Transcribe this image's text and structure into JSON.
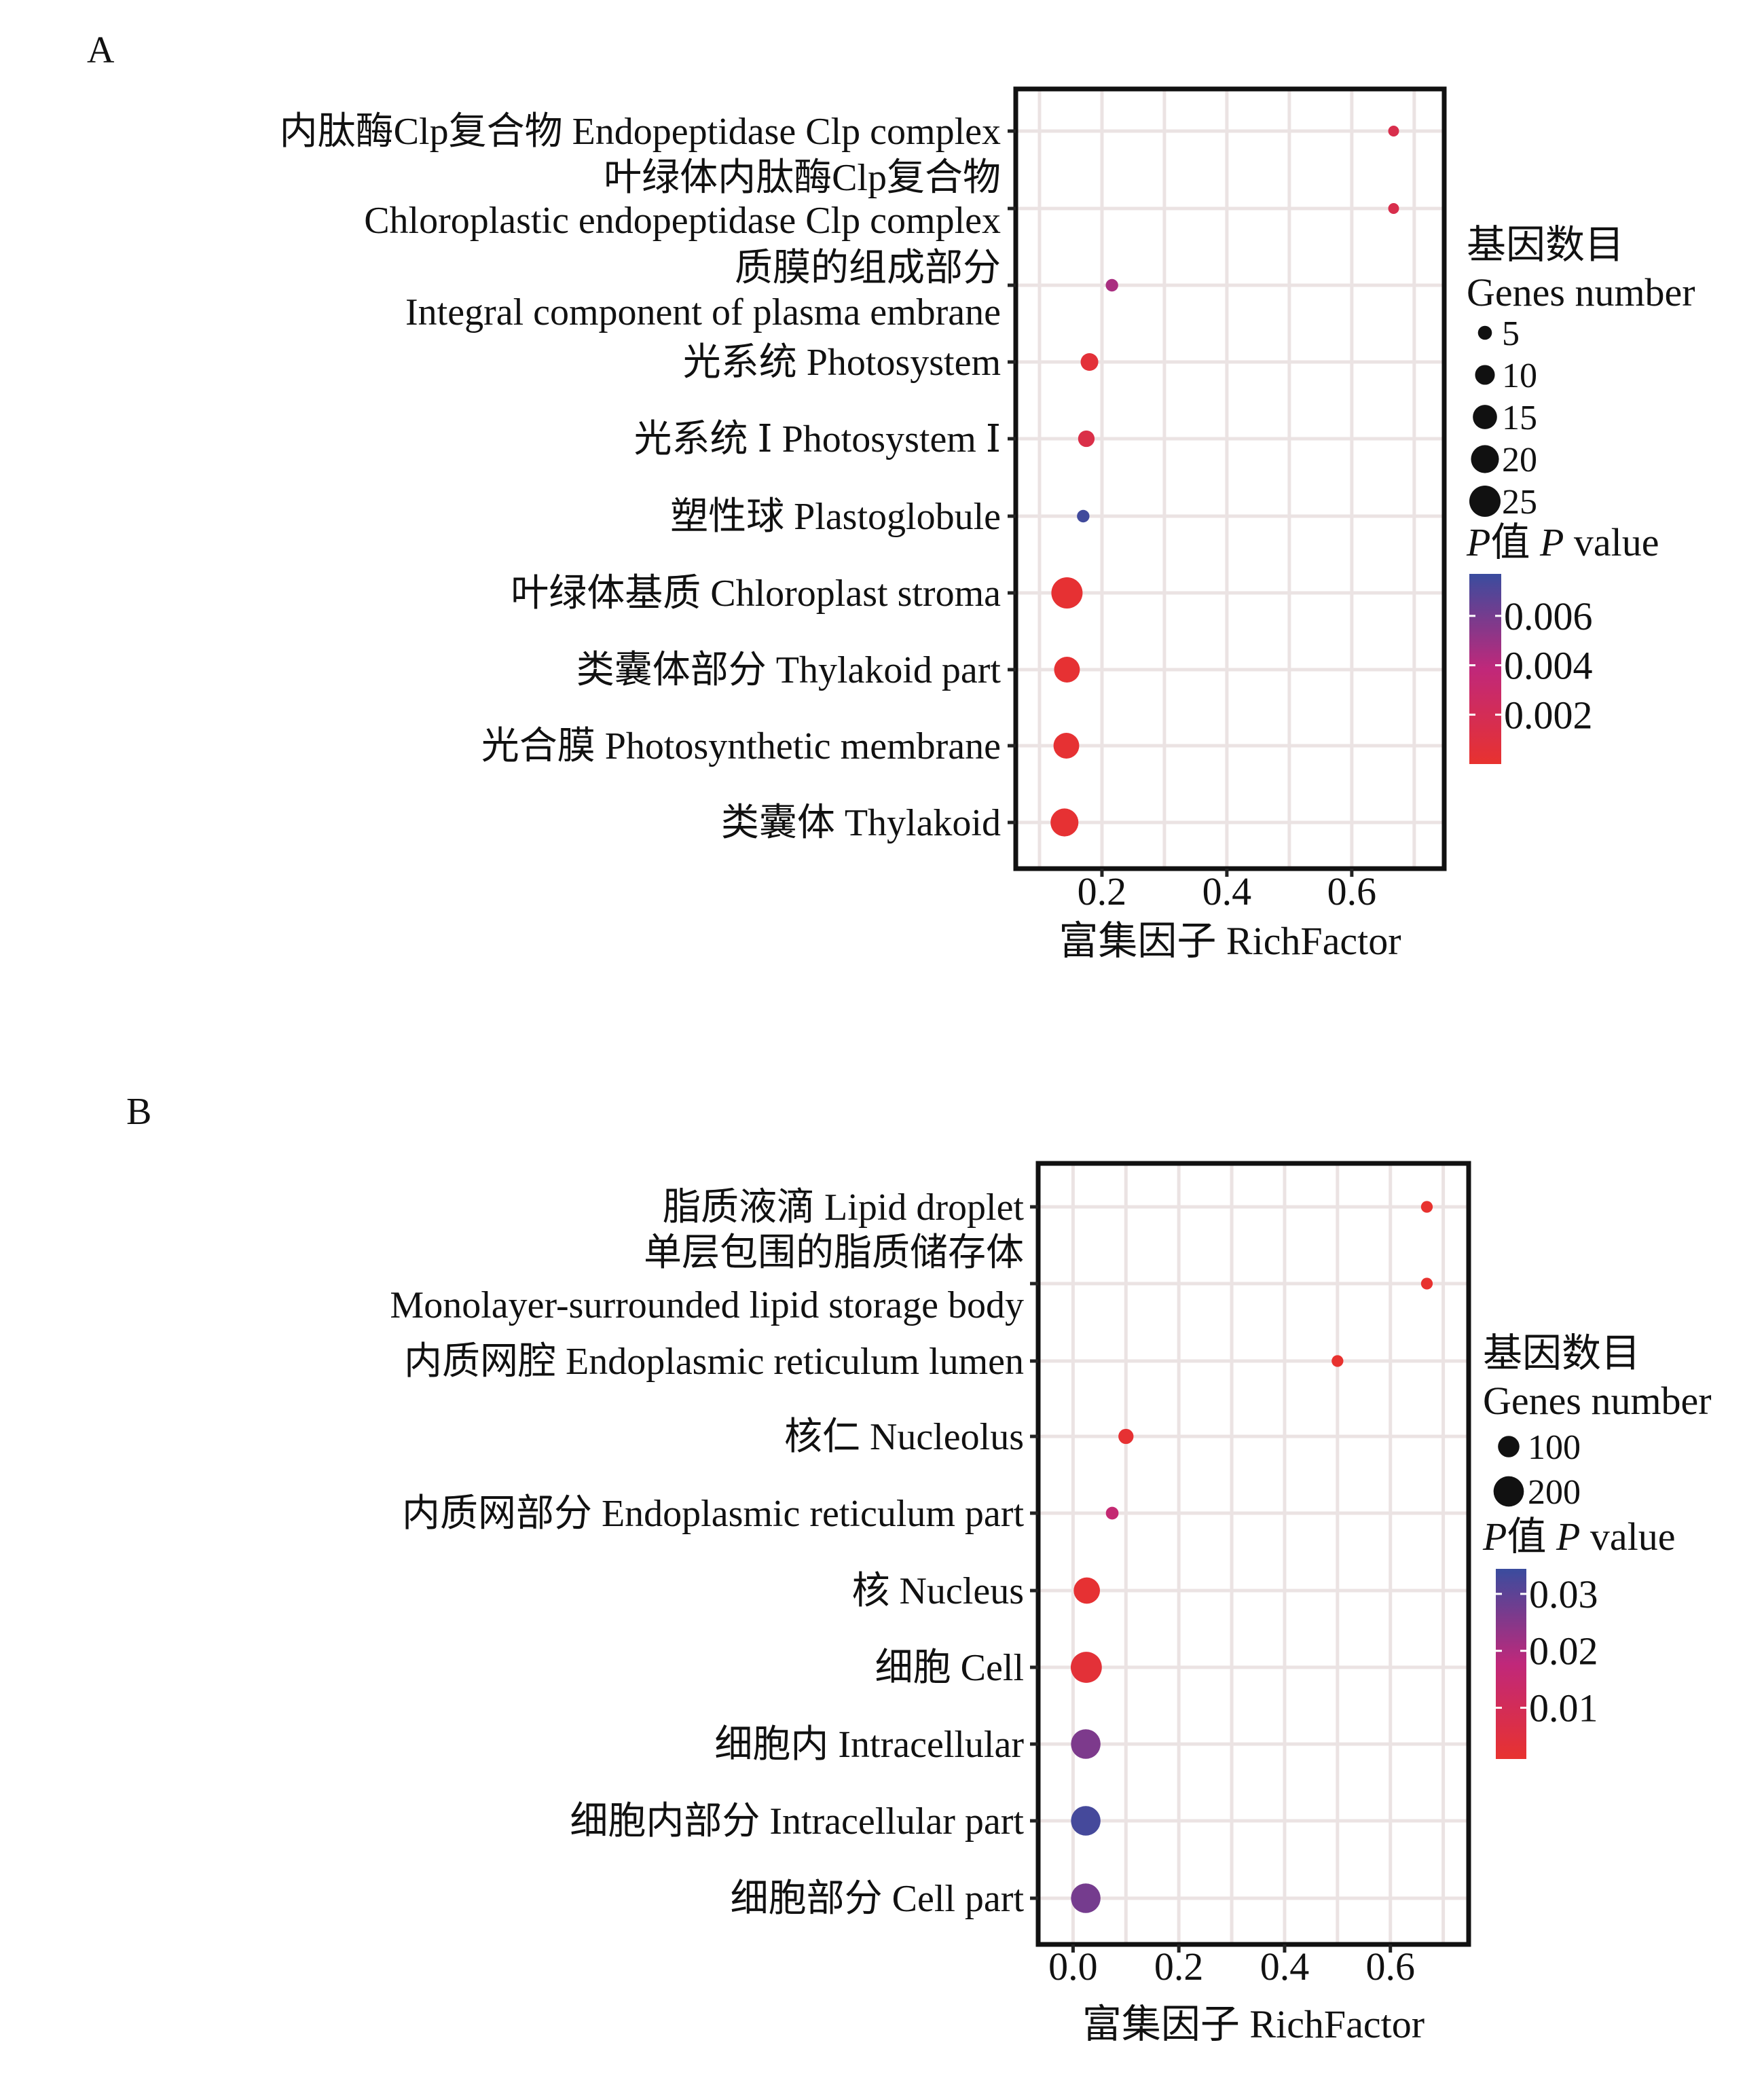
{
  "chart_data": [
    {
      "type": "scatter",
      "panel": "A",
      "xlabel": "富集因子 RichFactor",
      "ylabel": "",
      "xlim": [
        0.062,
        0.748
      ],
      "xticks": [
        0.2,
        0.4,
        0.6
      ],
      "xtick_labels": [
        "0.2",
        "0.4",
        "0.6"
      ],
      "grid": true,
      "legend_placement": "right",
      "size_legend": {
        "title_lines": [
          "基因数目",
          "Genes number"
        ],
        "values": [
          5,
          10,
          15,
          20,
          25
        ],
        "labels": [
          "5",
          "10",
          "15",
          "20",
          "25"
        ]
      },
      "color_legend": {
        "title_prefix": "P",
        "title_rest": "值 ",
        "title_p": "P",
        "title_suffix": " value",
        "range": [
          0,
          0.0077
        ],
        "ticks": [
          0.006,
          0.004,
          0.002
        ],
        "tick_labels": [
          "0.006",
          "0.004",
          "0.002"
        ],
        "low_color": "#e8322f",
        "mid_color": "#c0287a",
        "high_color": "#3a4c9e"
      },
      "categories": [
        {
          "label_lines": [
            "内肽酶Clp复合物 Endopeptidase Clp complex"
          ],
          "rich_factor": 0.667,
          "genes": 3,
          "p_value": 0.0015
        },
        {
          "label_lines": [
            "叶绿体内肽酶Clp复合物",
            "Chloroplastic endopeptidase Clp complex"
          ],
          "rich_factor": 0.667,
          "genes": 3,
          "p_value": 0.0015
        },
        {
          "label_lines": [
            "质膜的组成部分",
            "Integral component of plasma embrane"
          ],
          "rich_factor": 0.216,
          "genes": 4,
          "p_value": 0.0045
        },
        {
          "label_lines": [
            "光系统 Photosystem"
          ],
          "rich_factor": 0.18,
          "genes": 8,
          "p_value": 0.0005
        },
        {
          "label_lines": [
            "光系统 Ⅰ Photosystem Ⅰ"
          ],
          "rich_factor": 0.175,
          "genes": 7,
          "p_value": 0.0013
        },
        {
          "label_lines": [
            "塑性球 Plastoglobule"
          ],
          "rich_factor": 0.17,
          "genes": 4,
          "p_value": 0.0075
        },
        {
          "label_lines": [
            "叶绿体基质 Chloroplast stroma"
          ],
          "rich_factor": 0.144,
          "genes": 25,
          "p_value": 0.0002
        },
        {
          "label_lines": [
            "类囊体部分 Thylakoid part"
          ],
          "rich_factor": 0.144,
          "genes": 17,
          "p_value": 0.0002
        },
        {
          "label_lines": [
            "光合膜 Photosynthetic membrane"
          ],
          "rich_factor": 0.143,
          "genes": 17,
          "p_value": 0.0002
        },
        {
          "label_lines": [
            "类囊体 Thylakoid"
          ],
          "rich_factor": 0.14,
          "genes": 20,
          "p_value": 0.0002
        }
      ]
    },
    {
      "type": "scatter",
      "panel": "B",
      "xlabel": "富集因子 RichFactor",
      "ylabel": "",
      "xlim": [
        -0.066,
        0.748
      ],
      "xticks": [
        0.0,
        0.2,
        0.4,
        0.6
      ],
      "xtick_labels": [
        "0.0",
        "0.2",
        "0.4",
        "0.6"
      ],
      "grid": true,
      "legend_placement": "right",
      "size_legend": {
        "title_lines": [
          "基因数目",
          "Genes number"
        ],
        "values": [
          100,
          200
        ],
        "labels": [
          "100",
          "200"
        ]
      },
      "color_legend": {
        "title_prefix": "P",
        "title_rest": "值 ",
        "title_p": "P",
        "title_suffix": " value",
        "range": [
          0.001,
          0.0344
        ],
        "ticks": [
          0.03,
          0.02,
          0.01
        ],
        "tick_labels": [
          "0.03",
          "0.02",
          "0.01"
        ],
        "low_color": "#e8322f",
        "mid_color": "#c0287a",
        "high_color": "#3a4c9e"
      },
      "categories": [
        {
          "label_lines": [
            "脂质液滴 Lipid droplet"
          ],
          "rich_factor": 0.669,
          "genes": 30,
          "p_value": 0.001
        },
        {
          "label_lines": [
            "单层包围的脂质储存体",
            "Monolayer-surrounded lipid storage body"
          ],
          "rich_factor": 0.669,
          "genes": 30,
          "p_value": 0.001
        },
        {
          "label_lines": [
            "内质网腔 Endoplasmic reticulum lumen"
          ],
          "rich_factor": 0.5,
          "genes": 30,
          "p_value": 0.001
        },
        {
          "label_lines": [
            "核仁 Nucleolus"
          ],
          "rich_factor": 0.1,
          "genes": 50,
          "p_value": 0.002
        },
        {
          "label_lines": [
            "内质网部分 Endoplasmic reticulum part"
          ],
          "rich_factor": 0.074,
          "genes": 35,
          "p_value": 0.016
        },
        {
          "label_lines": [
            "核 Nucleus"
          ],
          "rich_factor": 0.026,
          "genes": 150,
          "p_value": 0.002
        },
        {
          "label_lines": [
            "细胞 Cell"
          ],
          "rich_factor": 0.025,
          "genes": 210,
          "p_value": 0.003
        },
        {
          "label_lines": [
            "细胞内 Intracellular"
          ],
          "rich_factor": 0.024,
          "genes": 190,
          "p_value": 0.026
        },
        {
          "label_lines": [
            "细胞内部分 Intracellular part"
          ],
          "rich_factor": 0.024,
          "genes": 190,
          "p_value": 0.033
        },
        {
          "label_lines": [
            "细胞部分 Cell part"
          ],
          "rich_factor": 0.024,
          "genes": 190,
          "p_value": 0.027
        }
      ]
    }
  ],
  "panels": {
    "a_letter": "A",
    "b_letter": "B"
  }
}
